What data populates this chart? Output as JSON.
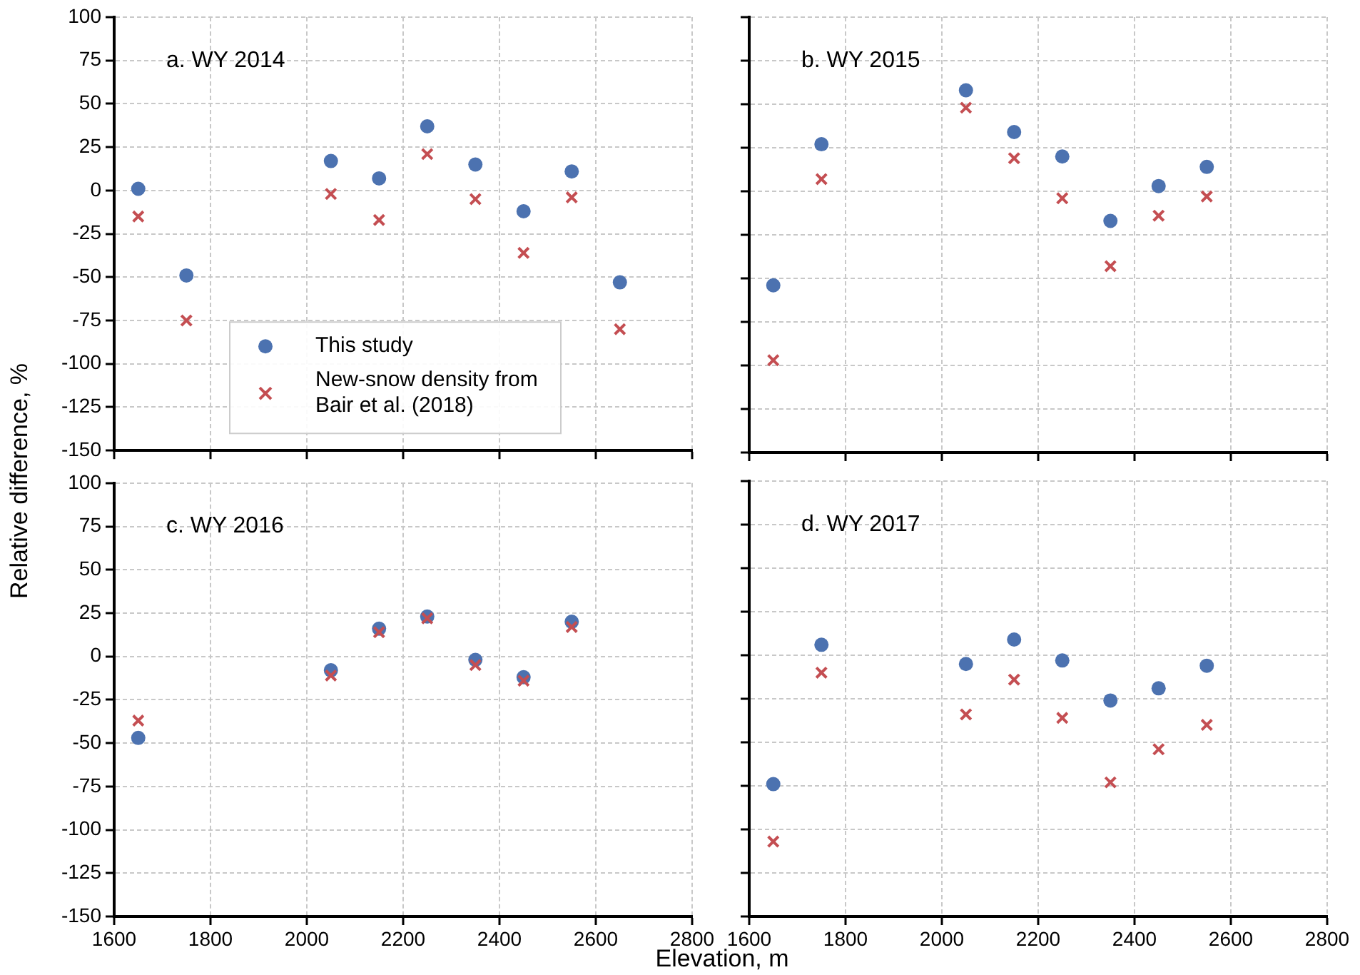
{
  "chart_data": [
    {
      "type": "scatter",
      "title": "a. WY 2014",
      "ylabel": "Relative difference, %",
      "xlim": [
        1600,
        2800
      ],
      "xticks": [
        1600,
        1800,
        2000,
        2200,
        2400,
        2600,
        2800
      ],
      "ylim": [
        -150,
        100
      ],
      "yticks": [
        -150,
        -125,
        -100,
        -75,
        -50,
        -25,
        0,
        25,
        50,
        75,
        100
      ],
      "grid": true,
      "legend": "bottom left",
      "tick_labels": "y",
      "x": [
        1650,
        1750,
        2050,
        2150,
        2250,
        2350,
        2450,
        2550,
        2650
      ],
      "series": [
        {
          "name": "This study",
          "color": "#4c72b0",
          "marker": "circle",
          "values": [
            1,
            -49,
            17,
            7,
            37,
            15,
            -12,
            11,
            -53
          ]
        },
        {
          "name": "New-snow density from Bair et al. (2018)",
          "color": "#c44e52",
          "marker": "cross",
          "values": [
            -15,
            -75,
            -2,
            -17,
            21,
            -5,
            -36,
            -4,
            -80
          ]
        }
      ]
    },
    {
      "type": "scatter",
      "title": "b. WY 2015",
      "xlim": [
        1600,
        2800
      ],
      "xticks": [
        1600,
        1800,
        2000,
        2200,
        2400,
        2600,
        2800
      ],
      "ylim": [
        -150,
        100
      ],
      "yticks": [
        -150,
        -125,
        -100,
        -75,
        -50,
        -25,
        0,
        25,
        50,
        75,
        100
      ],
      "grid": true,
      "tick_labels": false,
      "x": [
        1650,
        1750,
        2050,
        2150,
        2250,
        2350,
        2450,
        2550
      ],
      "series": [
        {
          "color": "#4c72b0",
          "marker": "circle",
          "values": [
            -54,
            27,
            58,
            34,
            20,
            -17,
            3,
            14
          ]
        },
        {
          "color": "#c44e52",
          "marker": "cross",
          "values": [
            -97,
            7,
            48,
            19,
            -4,
            -43,
            -14,
            -3
          ]
        }
      ]
    },
    {
      "type": "scatter",
      "title": "c. WY 2016",
      "xlabel": "Elevation, m",
      "xlim": [
        1600,
        2800
      ],
      "xticks": [
        1600,
        1800,
        2000,
        2200,
        2400,
        2600,
        2800
      ],
      "ylim": [
        -150,
        100
      ],
      "yticks": [
        -150,
        -125,
        -100,
        -75,
        -50,
        -25,
        0,
        25,
        50,
        75,
        100
      ],
      "grid": true,
      "x": [
        1650,
        2050,
        2150,
        2250,
        2350,
        2450,
        2550
      ],
      "series": [
        {
          "color": "#4c72b0",
          "marker": "circle",
          "values": [
            -47,
            -8,
            16,
            23,
            -2,
            -12,
            20
          ]
        },
        {
          "color": "#c44e52",
          "marker": "cross",
          "values": [
            -37,
            -11,
            14,
            22,
            -5,
            -14,
            17
          ]
        }
      ]
    },
    {
      "type": "scatter",
      "title": "d. WY 2017",
      "xlim": [
        1600,
        2800
      ],
      "xticks": [
        1600,
        1800,
        2000,
        2200,
        2400,
        2600,
        2800
      ],
      "ylim": [
        -150,
        100
      ],
      "yticks": [
        -150,
        -125,
        -100,
        -75,
        -50,
        -25,
        0,
        25,
        50,
        75,
        100
      ],
      "grid": true,
      "tick_labels": "x",
      "x": [
        1650,
        1750,
        2050,
        2150,
        2250,
        2350,
        2450,
        2550
      ],
      "series": [
        {
          "color": "#4c72b0",
          "marker": "circle",
          "values": [
            -74,
            6,
            -5,
            9,
            -3,
            -26,
            -19,
            -6
          ]
        },
        {
          "color": "#c44e52",
          "marker": "cross",
          "values": [
            -107,
            -10,
            -34,
            -14,
            -36,
            -73,
            -54,
            -40
          ]
        }
      ]
    }
  ]
}
